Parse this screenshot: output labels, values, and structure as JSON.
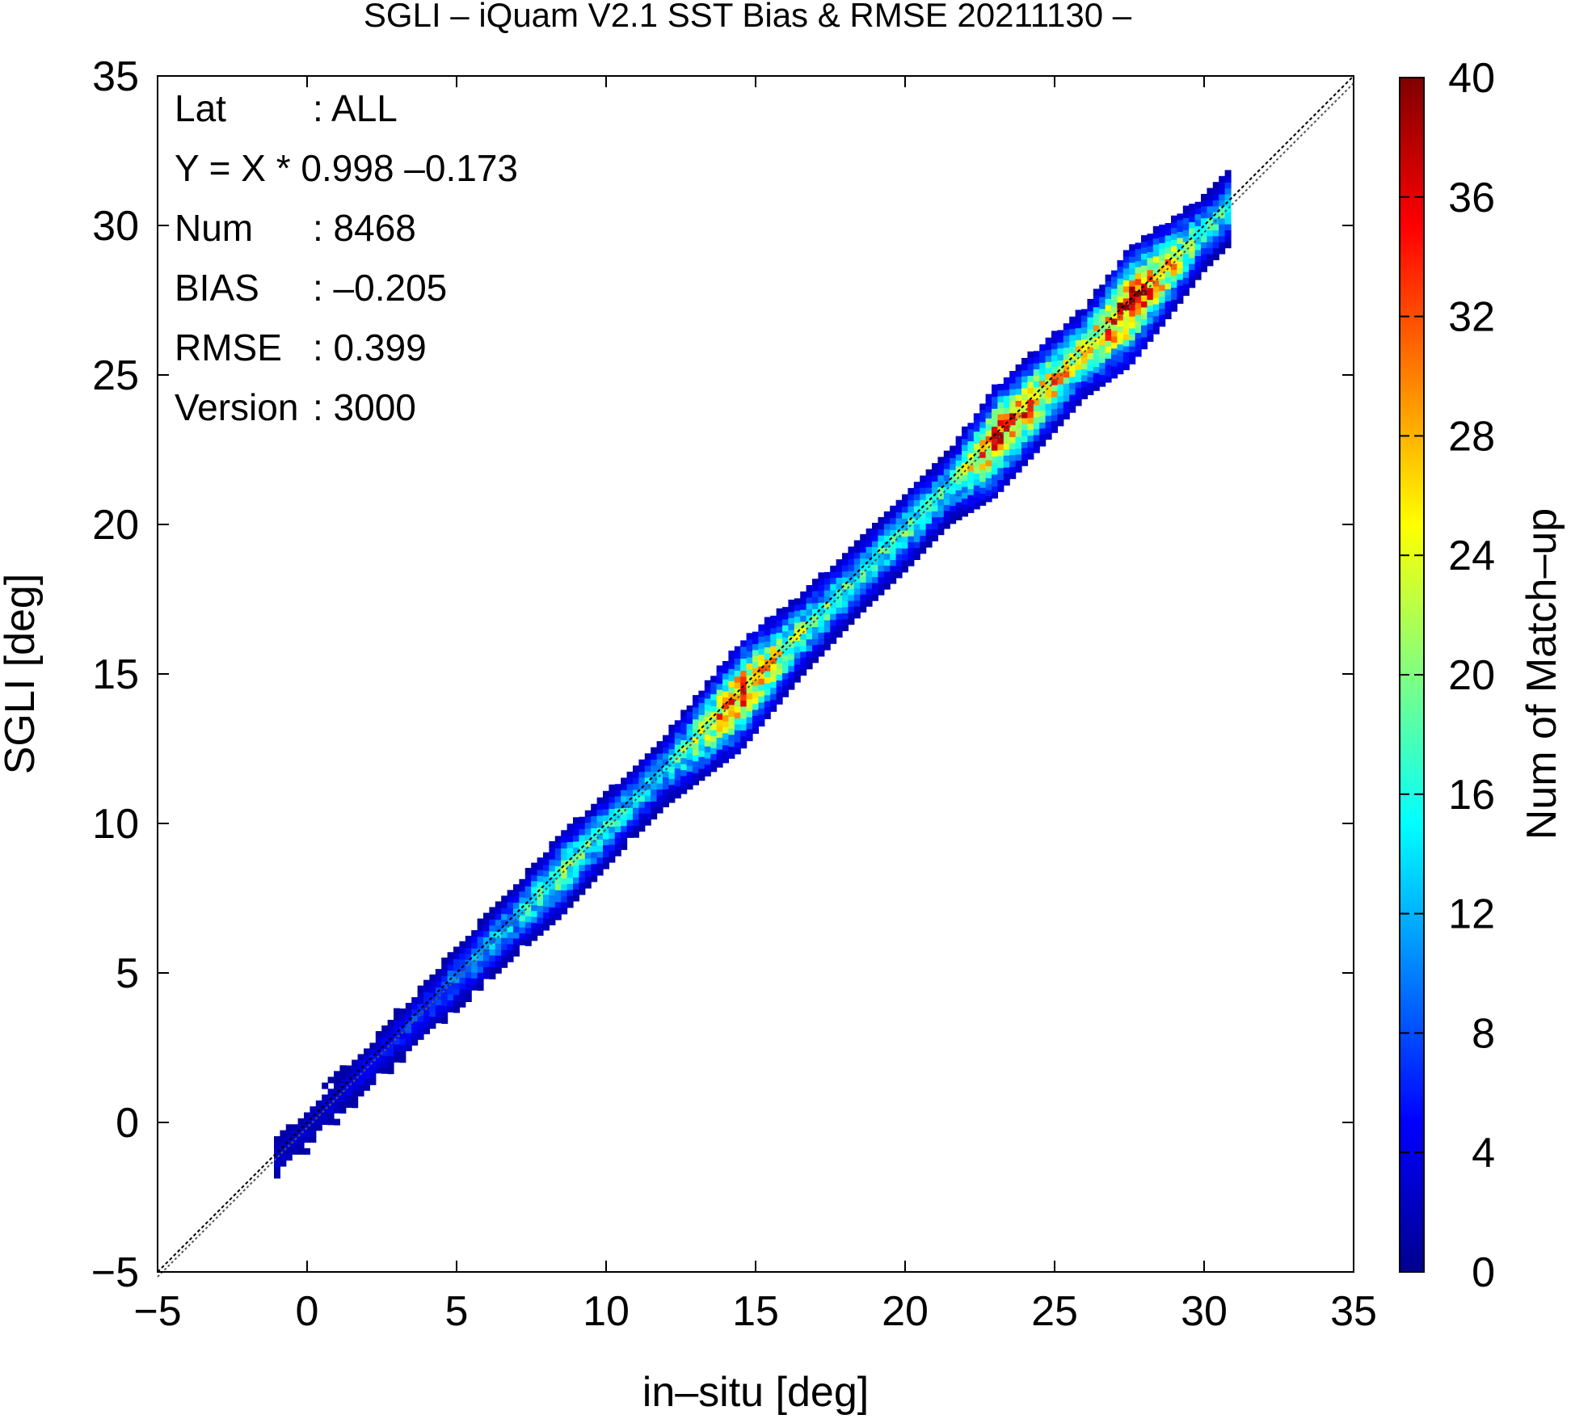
{
  "chart_data": {
    "type": "heatmap",
    "title": "SGLI – iQuam V2.1 SST Bias & RMSE 20211130 –",
    "xlabel": "in–situ [deg]",
    "ylabel": "SGLI [deg]",
    "xlim": [
      -5,
      35
    ],
    "ylim": [
      -5,
      35
    ],
    "x_ticks": [
      -5,
      0,
      5,
      10,
      15,
      20,
      25,
      30,
      35
    ],
    "y_ticks": [
      -5,
      0,
      5,
      10,
      15,
      20,
      25,
      30,
      35
    ],
    "x_tick_labels": [
      "−5",
      "0",
      "5",
      "10",
      "15",
      "20",
      "25",
      "30",
      "35"
    ],
    "y_tick_labels": [
      "−5",
      "0",
      "5",
      "10",
      "15",
      "20",
      "25",
      "30",
      "35"
    ],
    "grid": false,
    "reference_line": "1:1 dashed",
    "colorbar": {
      "label": "Num of Match–up",
      "min": 0,
      "max": 40,
      "ticks": [
        0,
        4,
        8,
        12,
        16,
        20,
        24,
        28,
        32,
        36,
        40
      ],
      "colormap": [
        "#00008f",
        "#0000ff",
        "#0080ff",
        "#00ffff",
        "#80ff80",
        "#ffff00",
        "#ff8000",
        "#ff0000",
        "#800000"
      ]
    },
    "stats": [
      {
        "label": "Lat",
        "value": ": ALL"
      },
      {
        "label": "Y = X * 0.998 –0.173",
        "value": ""
      },
      {
        "label": "Num",
        "value": ": 8468"
      },
      {
        "label": "BIAS",
        "value": ": –0.205"
      },
      {
        "label": "RMSE",
        "value": ": 0.399"
      },
      {
        "label": "Version",
        "value": ": 3000"
      }
    ],
    "regression": {
      "slope": 0.998,
      "intercept": -0.173
    },
    "density_ridge": [
      {
        "x": 0.5,
        "count": 3
      },
      {
        "x": 1.5,
        "count": 4
      },
      {
        "x": 4.0,
        "count": 8
      },
      {
        "x": 5.5,
        "count": 12
      },
      {
        "x": 7.0,
        "count": 14
      },
      {
        "x": 8.5,
        "count": 20
      },
      {
        "x": 10.5,
        "count": 15
      },
      {
        "x": 12.0,
        "count": 14
      },
      {
        "x": 14.5,
        "count": 34
      },
      {
        "x": 16.5,
        "count": 20
      },
      {
        "x": 18.5,
        "count": 16
      },
      {
        "x": 20.0,
        "count": 18
      },
      {
        "x": 21.5,
        "count": 16
      },
      {
        "x": 23.0,
        "count": 34
      },
      {
        "x": 24.5,
        "count": 30
      },
      {
        "x": 26.0,
        "count": 24
      },
      {
        "x": 27.5,
        "count": 38
      },
      {
        "x": 29.0,
        "count": 26
      },
      {
        "x": 30.0,
        "count": 16
      }
    ]
  }
}
